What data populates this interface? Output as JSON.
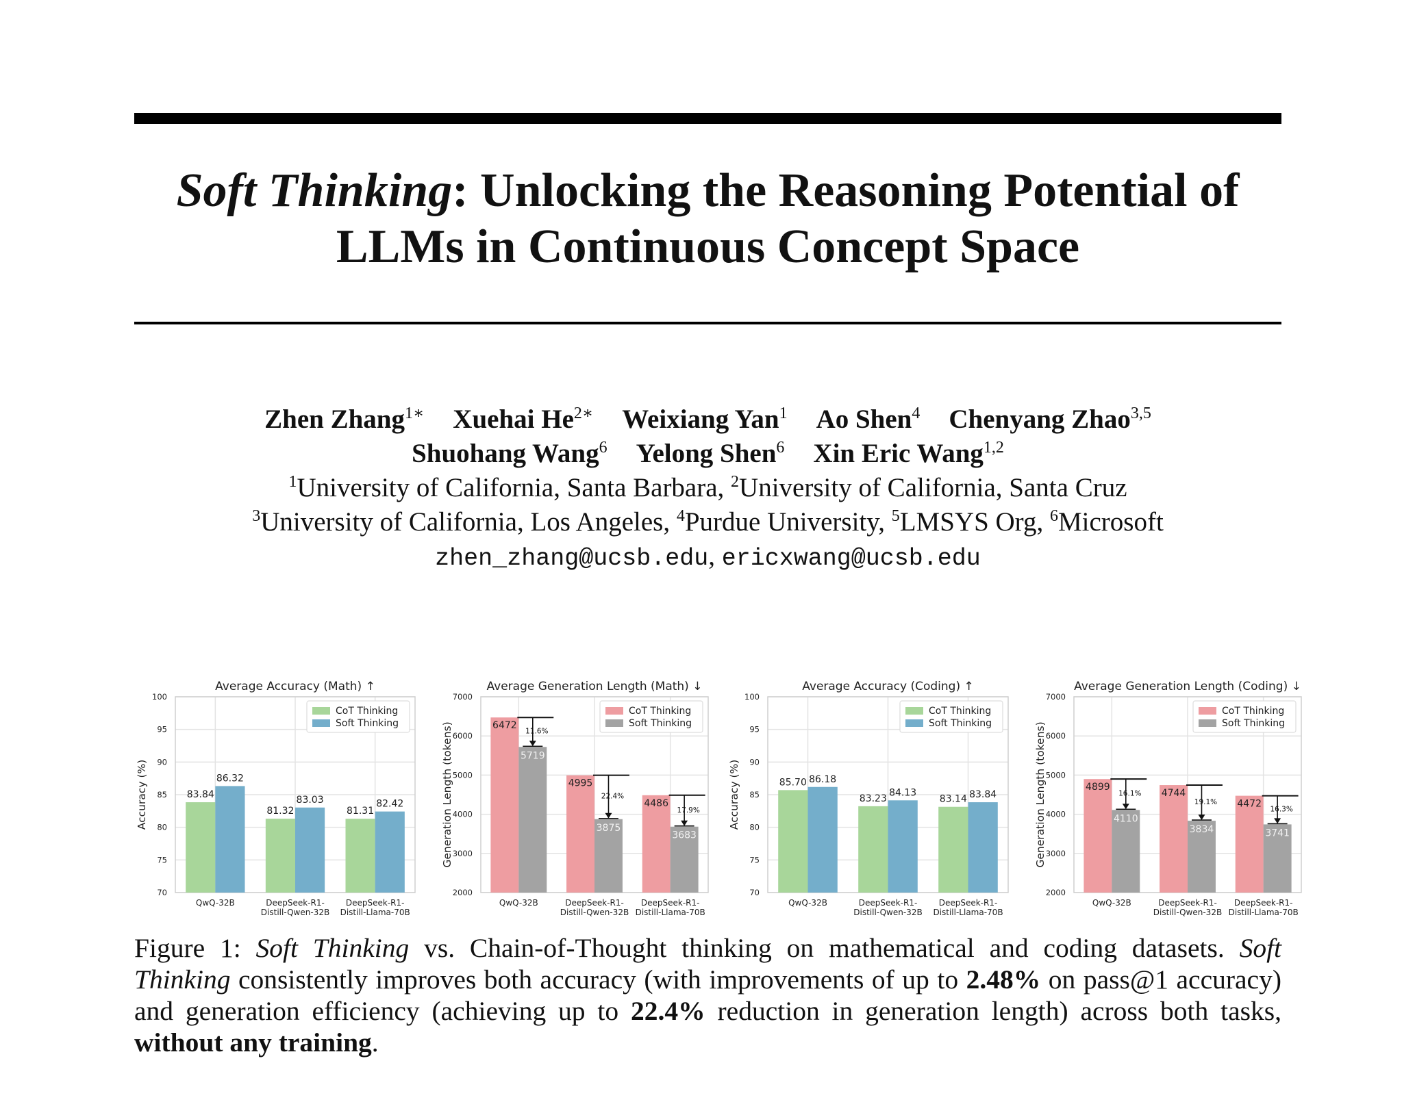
{
  "paper": {
    "title_italic": "Soft Thinking",
    "title_rest_line1": ": Unlocking the Reasoning Potential of",
    "title_line2": "LLMs in Continuous Concept Space",
    "authors_row1": [
      {
        "name": "Zhen Zhang",
        "sup": "1∗"
      },
      {
        "name": "Xuehai He",
        "sup": "2∗"
      },
      {
        "name": "Weixiang Yan",
        "sup": "1"
      },
      {
        "name": "Ao Shen",
        "sup": "4"
      },
      {
        "name": "Chenyang Zhao",
        "sup": "3,5"
      }
    ],
    "authors_row2": [
      {
        "name": "Shuohang Wang",
        "sup": "6"
      },
      {
        "name": "Yelong Shen",
        "sup": "6"
      },
      {
        "name": "Xin Eric Wang",
        "sup": "1,2"
      }
    ],
    "affil_row1": [
      {
        "sup": "1",
        "text": "University of California, Santa Barbara, "
      },
      {
        "sup": "2",
        "text": "University of California, Santa Cruz"
      }
    ],
    "affil_row2": [
      {
        "sup": "3",
        "text": "University of California, Los Angeles, "
      },
      {
        "sup": "4",
        "text": "Purdue University, "
      },
      {
        "sup": "5",
        "text": "LMSYS Org, "
      },
      {
        "sup": "6",
        "text": "Microsoft"
      }
    ],
    "email1": "zhen_zhang@ucsb.edu",
    "email_sep": ", ",
    "email2": "ericxwang@ucsb.edu"
  },
  "caption": {
    "label": "Figure 1: ",
    "part1_italic": "Soft Thinking",
    "part2": " vs. Chain-of-Thought thinking on mathematical and coding datasets. ",
    "part3_italic": "Soft Thinking",
    "part4": " consistently improves both accuracy (with improvements of up to ",
    "bold1": "2.48%",
    "part5": " on pass@1 accuracy) and generation efficiency (achieving up to ",
    "bold2": "22.4%",
    "part6": " reduction in generation length) across both tasks, ",
    "bold3": "without any training",
    "part7": "."
  },
  "colors": {
    "cot_accuracy": "#a8d69a",
    "soft_accuracy": "#74aecb",
    "cot_length": "#ee9da1",
    "soft_length": "#a3a3a3",
    "grid": "#e3e3e3"
  },
  "chart_data": [
    {
      "type": "bar",
      "title": "Average Accuracy (Math) ↑",
      "ylabel": "Accuracy (%)",
      "ylim": [
        70,
        100
      ],
      "yticks": [
        70,
        75,
        80,
        85,
        90,
        95,
        100
      ],
      "categories": [
        [
          "QwQ-32B"
        ],
        [
          "DeepSeek-R1-",
          "Distill-Qwen-32B"
        ],
        [
          "DeepSeek-R1-",
          "Distill-Llama-70B"
        ]
      ],
      "series": [
        {
          "name": "CoT Thinking",
          "values": [
            83.84,
            81.32,
            81.31
          ],
          "labels": [
            "83.84",
            "81.32",
            "81.31"
          ]
        },
        {
          "name": "Soft Thinking",
          "values": [
            86.32,
            83.03,
            82.42
          ],
          "labels": [
            "86.32",
            "83.03",
            "82.42"
          ]
        }
      ],
      "legend": "top-right",
      "grid": true
    },
    {
      "type": "bar",
      "title": "Average Generation Length (Math) ↓",
      "ylabel": "Generation Length (tokens)",
      "ylim": [
        2000,
        7000
      ],
      "yticks": [
        2000,
        3000,
        4000,
        5000,
        6000,
        7000
      ],
      "categories": [
        [
          "QwQ-32B"
        ],
        [
          "DeepSeek-R1-",
          "Distill-Qwen-32B"
        ],
        [
          "DeepSeek-R1-",
          "Distill-Llama-70B"
        ]
      ],
      "series": [
        {
          "name": "CoT Thinking",
          "values": [
            6472,
            4995,
            4486
          ],
          "labels": [
            "6472",
            "4995",
            "4486"
          ]
        },
        {
          "name": "Soft Thinking",
          "values": [
            5719,
            3875,
            3683
          ],
          "labels": [
            "5719",
            "3875",
            "3683"
          ]
        }
      ],
      "reductions": [
        "11.6%",
        "22.4%",
        "17.9%"
      ],
      "legend": "top-right",
      "grid": true
    },
    {
      "type": "bar",
      "title": "Average Accuracy (Coding) ↑",
      "ylabel": "Accuracy (%)",
      "ylim": [
        70,
        100
      ],
      "yticks": [
        70,
        75,
        80,
        85,
        90,
        95,
        100
      ],
      "categories": [
        [
          "QwQ-32B"
        ],
        [
          "DeepSeek-R1-",
          "Distill-Qwen-32B"
        ],
        [
          "DeepSeek-R1-",
          "Distill-Llama-70B"
        ]
      ],
      "series": [
        {
          "name": "CoT Thinking",
          "values": [
            85.7,
            83.23,
            83.14
          ],
          "labels": [
            "85.70",
            "83.23",
            "83.14"
          ]
        },
        {
          "name": "Soft Thinking",
          "values": [
            86.18,
            84.13,
            83.84
          ],
          "labels": [
            "86.18",
            "84.13",
            "83.84"
          ]
        }
      ],
      "legend": "top-right",
      "grid": true
    },
    {
      "type": "bar",
      "title": "Average Generation Length (Coding) ↓",
      "ylabel": "Generation Length (tokens)",
      "ylim": [
        2000,
        7000
      ],
      "yticks": [
        2000,
        3000,
        4000,
        5000,
        6000,
        7000
      ],
      "categories": [
        [
          "QwQ-32B"
        ],
        [
          "DeepSeek-R1-",
          "Distill-Qwen-32B"
        ],
        [
          "DeepSeek-R1-",
          "Distill-Llama-70B"
        ]
      ],
      "series": [
        {
          "name": "CoT Thinking",
          "values": [
            4899,
            4744,
            4472
          ],
          "labels": [
            "4899",
            "4744",
            "4472"
          ]
        },
        {
          "name": "Soft Thinking",
          "values": [
            4110,
            3834,
            3741
          ],
          "labels": [
            "4110",
            "3834",
            "3741"
          ]
        }
      ],
      "reductions": [
        "16.1%",
        "19.1%",
        "16.3%"
      ],
      "legend": "top-right",
      "grid": true
    }
  ]
}
